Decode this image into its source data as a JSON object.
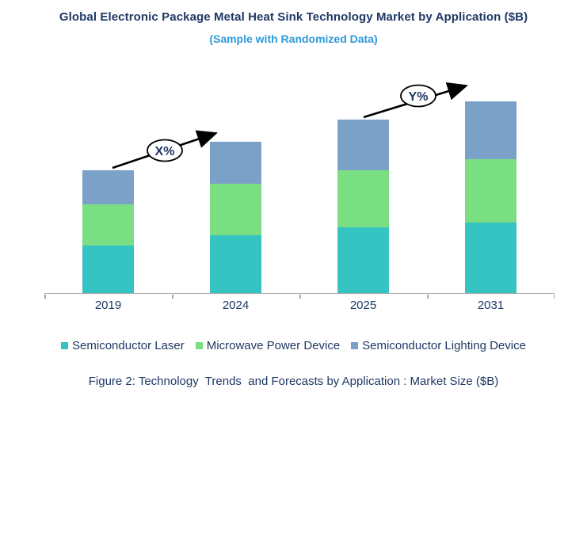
{
  "header": {
    "title": "Global Electronic Package Metal Heat Sink Technology Market by Application ($B)",
    "subtitle": "(Sample with Randomized Data)"
  },
  "colors": {
    "title_text": "#1F3864",
    "subtitle_text": "#2E9AD9",
    "axis_line": "#A6A6A6",
    "annotation_text": "#1F3864",
    "arrow": "#000000"
  },
  "chart_data": {
    "type": "bar",
    "stacked": true,
    "title": "Global Electronic Package Metal Heat Sink Technology Market by Application ($B)",
    "xlabel": "",
    "ylabel": "",
    "grid": false,
    "y_axis_visible": false,
    "values_note": "relative units estimated from bar heights; chart shows no numeric axis",
    "ylim": [
      0,
      280
    ],
    "categories": [
      "2019",
      "2024",
      "2025",
      "2031"
    ],
    "series": [
      {
        "name": "Semiconductor Laser",
        "color": "#36C4C3",
        "values": [
          60,
          73,
          83,
          89
        ]
      },
      {
        "name": "Microwave Power Device",
        "color": "#7ADE82",
        "values": [
          52,
          65,
          72,
          80
        ]
      },
      {
        "name": "Semiconductor Lighting Device",
        "color": "#7CA1C9",
        "values": [
          43,
          53,
          64,
          73
        ]
      }
    ],
    "totals": [
      155,
      191,
      219,
      242
    ],
    "legend_position": "bottom",
    "annotations": [
      {
        "label": "X%",
        "type": "growth-arrow",
        "from_category": "2019",
        "to_category": "2024"
      },
      {
        "label": "Y%",
        "type": "growth-arrow",
        "from_category": "2025",
        "to_category": "2031"
      }
    ]
  },
  "caption": "Figure 2: Technology  Trends  and Forecasts by Application : Market Size ($B)"
}
